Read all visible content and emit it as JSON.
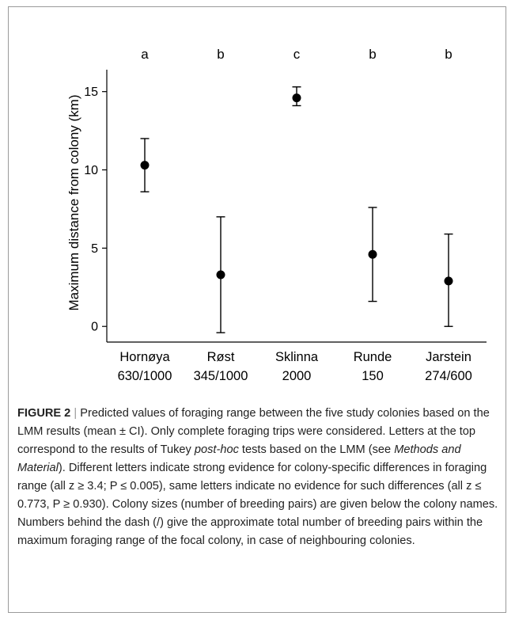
{
  "chart_data": {
    "type": "scatter",
    "ylabel": "Maximum distance from colony (km)",
    "ylim": [
      -1,
      16.4
    ],
    "yticks": [
      0,
      5,
      10,
      15
    ],
    "categories": [
      "Hornøya",
      "Røst",
      "Sklinna",
      "Runde",
      "Jarstein"
    ],
    "category_sizes": [
      "630/1000",
      "345/1000",
      "2000",
      "150",
      "274/600"
    ],
    "group_letters": [
      "a",
      "b",
      "c",
      "b",
      "b"
    ],
    "mean": [
      10.3,
      3.3,
      14.6,
      4.6,
      2.9
    ],
    "ci_low": [
      8.6,
      -0.4,
      14.1,
      1.6,
      0.0
    ],
    "ci_high": [
      12.0,
      7.0,
      15.3,
      7.6,
      5.9
    ],
    "grid": false,
    "legend": "none"
  },
  "caption": {
    "lead": "FIGURE 2",
    "separator": "|",
    "part1": " Predicted values of foraging range between the five study colonies based on the LMM results (mean ± CI). Only complete foraging trips were considered. Letters at the top correspond to the results of Tukey ",
    "italic1": "post-hoc",
    "part2": " tests based on the LMM (see ",
    "italic2": "Methods and Material",
    "part3": "). Different letters indicate strong evidence for colony-specific differences in foraging range (all z ≥ 3.4; P ≤ 0.005), same letters indicate no evidence for such differences (all z ≤ 0.773, P ≥ 0.930). Colony sizes (number of breeding pairs) are given below the colony names. Numbers behind the dash (/) give the approximate total number of breeding pairs within the maximum foraging range of the focal colony, in case of neighbouring colonies."
  }
}
